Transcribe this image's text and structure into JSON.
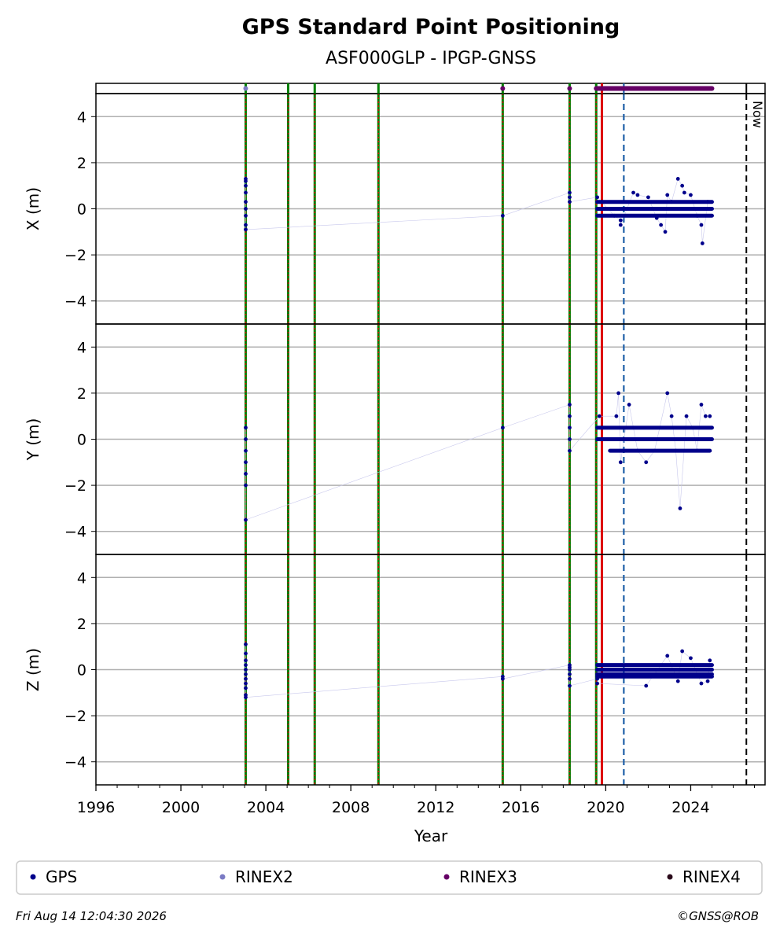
{
  "header": {
    "title": "GPS Standard Point Positioning",
    "subtitle": "ASF000GLP - IPGP-GNSS"
  },
  "chart_data": {
    "type": "scatter",
    "xlabel": "Year",
    "xlim": [
      1996,
      2027.5
    ],
    "x_ticks": [
      "1996",
      "2000",
      "2004",
      "2008",
      "2012",
      "2016",
      "2020",
      "2024"
    ],
    "x_tick_values": [
      1996,
      2000,
      2004,
      2008,
      2012,
      2016,
      2020,
      2024
    ],
    "grid": true,
    "now_label": "Now",
    "now_year": 2026.62,
    "events": {
      "dotted_green_red": [
        2003.05,
        2005.05,
        2006.3,
        2009.3,
        2015.15,
        2018.3,
        2019.55
      ],
      "solid_red": [
        2019.82
      ],
      "dashed_blue": [
        2020.85
      ]
    },
    "legend": {
      "placement": "bottom",
      "entries": [
        {
          "label": "GPS",
          "color": "#00008b"
        },
        {
          "label": "RINEX2",
          "color": "#7b7bc4"
        },
        {
          "label": "RINEX3",
          "color": "#660066"
        },
        {
          "label": "RINEX4",
          "color": "#2a0a1a"
        }
      ]
    },
    "rinex_markers": [
      {
        "type": "RINEX2",
        "x": [
          2003.05
        ]
      },
      {
        "type": "RINEX3",
        "x": [
          2015.15,
          2018.3
        ],
        "range": [
          2019.55,
          2025.0
        ]
      }
    ],
    "panels": [
      {
        "ylabel": "X (m)",
        "ylim": [
          -5,
          5
        ],
        "y_ticks": [
          "4",
          "2",
          "0",
          "−2",
          "−4"
        ],
        "y_tick_values": [
          4,
          2,
          0,
          -2,
          -4
        ],
        "series": [
          {
            "name": "GPS",
            "points": [
              [
                2003.05,
                1.3
              ],
              [
                2003.05,
                1.2
              ],
              [
                2003.05,
                1.0
              ],
              [
                2003.05,
                0.7
              ],
              [
                2003.05,
                0.3
              ],
              [
                2003.05,
                0.0
              ],
              [
                2003.05,
                -0.3
              ],
              [
                2003.05,
                -0.7
              ],
              [
                2003.05,
                -0.9
              ],
              [
                2015.15,
                -0.3
              ],
              [
                2018.3,
                0.7
              ],
              [
                2018.3,
                0.5
              ],
              [
                2018.3,
                0.3
              ],
              [
                2019.6,
                0.5
              ],
              [
                2019.8,
                0.3
              ],
              [
                2020.1,
                0.0
              ],
              [
                2020.4,
                -0.3
              ],
              [
                2020.7,
                -0.5
              ],
              [
                2020.7,
                -0.7
              ],
              [
                2021.3,
                0.7
              ],
              [
                2021.5,
                0.6
              ],
              [
                2022.0,
                0.5
              ],
              [
                2022.4,
                -0.4
              ],
              [
                2022.6,
                -0.7
              ],
              [
                2022.8,
                -1.0
              ],
              [
                2022.9,
                0.6
              ],
              [
                2023.1,
                0.3
              ],
              [
                2023.4,
                1.3
              ],
              [
                2023.6,
                1.0
              ],
              [
                2023.7,
                0.7
              ],
              [
                2024.0,
                0.6
              ],
              [
                2024.3,
                -0.3
              ],
              [
                2024.5,
                -0.7
              ],
              [
                2024.55,
                -1.5
              ],
              [
                2024.8,
                0.3
              ]
            ],
            "bands": [
              {
                "x": [
                  2019.6,
                  2025.0
                ],
                "y": 0.3
              },
              {
                "x": [
                  2019.6,
                  2025.0
                ],
                "y": 0.0
              },
              {
                "x": [
                  2019.6,
                  2025.0
                ],
                "y": -0.3
              }
            ]
          }
        ]
      },
      {
        "ylabel": "Y (m)",
        "ylim": [
          -5,
          5
        ],
        "y_ticks": [
          "4",
          "2",
          "0",
          "−2",
          "−4"
        ],
        "y_tick_values": [
          4,
          2,
          0,
          -2,
          -4
        ],
        "series": [
          {
            "name": "GPS",
            "points": [
              [
                2003.05,
                0.5
              ],
              [
                2003.05,
                0.0
              ],
              [
                2003.05,
                -0.5
              ],
              [
                2003.05,
                -1.0
              ],
              [
                2003.05,
                -1.5
              ],
              [
                2003.05,
                -2.0
              ],
              [
                2003.05,
                -3.5
              ],
              [
                2015.15,
                0.5
              ],
              [
                2018.3,
                1.5
              ],
              [
                2018.3,
                1.0
              ],
              [
                2018.3,
                0.5
              ],
              [
                2018.3,
                0.0
              ],
              [
                2018.3,
                -0.5
              ],
              [
                2019.7,
                1.0
              ],
              [
                2020.5,
                1.0
              ],
              [
                2020.6,
                2.0
              ],
              [
                2020.7,
                -1.0
              ],
              [
                2021.1,
                1.5
              ],
              [
                2021.9,
                -1.0
              ],
              [
                2022.9,
                2.0
              ],
              [
                2023.1,
                1.0
              ],
              [
                2023.5,
                -3.0
              ],
              [
                2023.8,
                1.0
              ],
              [
                2024.1,
                0.5
              ],
              [
                2024.5,
                1.5
              ],
              [
                2024.7,
                1.0
              ],
              [
                2024.9,
                1.0
              ],
              [
                2021.5,
                -0.5
              ],
              [
                2022.3,
                -0.5
              ],
              [
                2023.3,
                -0.5
              ],
              [
                2024.3,
                -0.5
              ]
            ],
            "bands": [
              {
                "x": [
                  2019.6,
                  2025.0
                ],
                "y": 0.5
              },
              {
                "x": [
                  2019.6,
                  2025.0
                ],
                "y": 0.0
              },
              {
                "x": [
                  2020.2,
                  2024.9
                ],
                "y": -0.5
              }
            ]
          }
        ]
      },
      {
        "ylabel": "Z (m)",
        "ylim": [
          -5,
          5
        ],
        "y_ticks": [
          "4",
          "2",
          "0",
          "−2",
          "−4"
        ],
        "y_tick_values": [
          4,
          2,
          0,
          -2,
          -4
        ],
        "series": [
          {
            "name": "GPS",
            "points": [
              [
                2003.05,
                1.1
              ],
              [
                2003.05,
                0.7
              ],
              [
                2003.05,
                0.4
              ],
              [
                2003.05,
                0.2
              ],
              [
                2003.05,
                0.0
              ],
              [
                2003.05,
                -0.2
              ],
              [
                2003.05,
                -0.4
              ],
              [
                2003.05,
                -0.6
              ],
              [
                2003.05,
                -0.8
              ],
              [
                2003.05,
                -1.1
              ],
              [
                2003.05,
                -1.2
              ],
              [
                2015.15,
                -0.3
              ],
              [
                2015.15,
                -0.4
              ],
              [
                2018.3,
                0.2
              ],
              [
                2018.3,
                0.1
              ],
              [
                2018.3,
                0.0
              ],
              [
                2018.3,
                -0.2
              ],
              [
                2018.3,
                -0.4
              ],
              [
                2018.3,
                -0.7
              ],
              [
                2019.6,
                -0.4
              ],
              [
                2019.6,
                -0.6
              ],
              [
                2021.9,
                -0.7
              ],
              [
                2022.9,
                0.6
              ],
              [
                2023.4,
                -0.5
              ],
              [
                2023.6,
                0.8
              ],
              [
                2024.0,
                0.5
              ],
              [
                2024.5,
                -0.6
              ],
              [
                2024.8,
                -0.5
              ],
              [
                2024.9,
                0.4
              ]
            ],
            "bands": [
              {
                "x": [
                  2019.6,
                  2025.0
                ],
                "y": 0.2
              },
              {
                "x": [
                  2019.6,
                  2025.0
                ],
                "y": 0.0
              },
              {
                "x": [
                  2019.6,
                  2025.0
                ],
                "y": -0.2
              },
              {
                "x": [
                  2019.6,
                  2025.0
                ],
                "y": -0.3
              }
            ]
          }
        ]
      }
    ]
  },
  "footer": {
    "timestamp": "Fri Aug 14 12:04:30 2026",
    "copyright": "©GNSS@ROB"
  }
}
